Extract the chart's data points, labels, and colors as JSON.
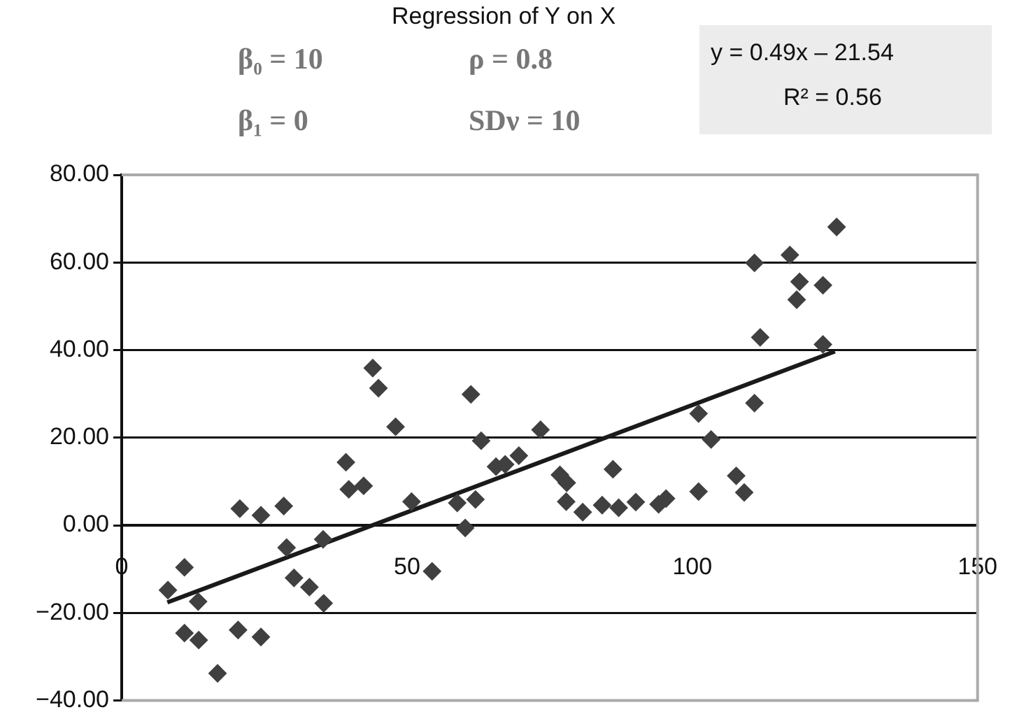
{
  "chart_data": {
    "type": "scatter",
    "title": "Regression of Y on X",
    "annotations": [
      "β₀ = 10",
      "ρ = 0.8",
      "β₁ = 0",
      "SDν = 10",
      "y = 0.49x – 21.54",
      "R² = 0.56"
    ],
    "xlim": [
      0,
      150
    ],
    "xticks": [
      0,
      50,
      100,
      150
    ],
    "ylim": [
      -40,
      80
    ],
    "yticks": [
      {
        "value": -40,
        "label": "−40.00"
      },
      {
        "value": -20,
        "label": "−20.00"
      },
      {
        "value": 0,
        "label": "0.00"
      },
      {
        "value": 20,
        "label": "20.00"
      },
      {
        "value": 40,
        "label": "40.00"
      },
      {
        "value": 60,
        "label": "60.00"
      },
      {
        "value": 80,
        "label": "80.00"
      }
    ],
    "grid": "y",
    "legend": false,
    "marker": "diamond",
    "series": [
      {
        "color": "#404040",
        "x": [
          8.1,
          11,
          11,
          13.4,
          13.5,
          16.8,
          20.4,
          20.7,
          24.4,
          24.4,
          28.4,
          28.9,
          30.2,
          32.9,
          35.3,
          35.4,
          39.3,
          39.8,
          42.4,
          44,
          45,
          48,
          50.8,
          54.4,
          58.8,
          60.2,
          61.2,
          62,
          63,
          65.6,
          67.2,
          69.6,
          73.4,
          76.8,
          78,
          77.9,
          80.8,
          86.1,
          84.2,
          87.1,
          90.1,
          94.1,
          95.4,
          101.1,
          101.1,
          103.3,
          110.9,
          107.7,
          109.1,
          110.9,
          111.9,
          117.1,
          118.8,
          118.3,
          122.9,
          122.9,
          125.3
        ],
        "values": [
          -14.8,
          -9.6,
          -24.6,
          -17.4,
          -26.2,
          -33.8,
          -23.9,
          3.8,
          -25.5,
          2.3,
          4.4,
          -5.1,
          -12,
          -14.1,
          -3.2,
          -17.8,
          14.4,
          8.2,
          9,
          35.9,
          31.3,
          22.5,
          5.4,
          -10.5,
          5.1,
          -0.6,
          29.9,
          5.9,
          19.3,
          13.4,
          13.9,
          15.9,
          21.8,
          11.5,
          9.7,
          5.4,
          3,
          12.8,
          4.6,
          4,
          5.3,
          4.8,
          6.1,
          25.5,
          7.7,
          19.6,
          27.9,
          11.3,
          7.5,
          59.9,
          42.9,
          61.7,
          55.6,
          51.5,
          54.8,
          41.3,
          68.1
        ]
      },
      {
        "type": "line",
        "color": "#1a1a1a",
        "marker": "none",
        "line_style": "solid",
        "x": [
          8,
          125
        ],
        "values": [
          -17.6,
          39.7
        ]
      }
    ]
  }
}
